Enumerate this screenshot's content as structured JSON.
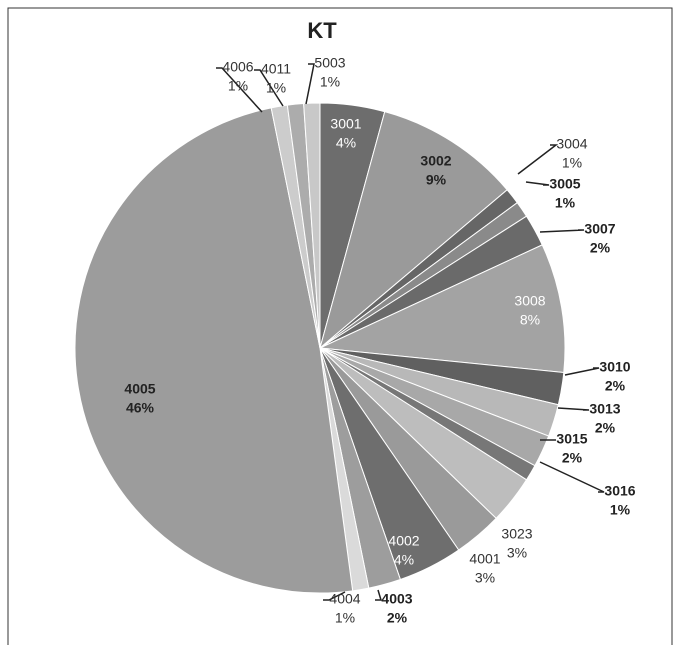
{
  "chart_data": {
    "type": "pie",
    "title": "KT",
    "categories": [
      "3001",
      "3002",
      "3004",
      "3005",
      "3007",
      "3008",
      "3010",
      "3013",
      "3015",
      "3016",
      "3023",
      "4001",
      "4002",
      "4003",
      "4004",
      "4005",
      "4006",
      "4011",
      "5003"
    ],
    "values": [
      4,
      9,
      1,
      1,
      2,
      8,
      2,
      2,
      2,
      1,
      3,
      3,
      4,
      2,
      1,
      46,
      1,
      1,
      1
    ],
    "value_labels": [
      "4%",
      "9%",
      "1%",
      "1%",
      "2%",
      "8%",
      "2%",
      "2%",
      "2%",
      "1%",
      "3%",
      "3%",
      "4%",
      "2%",
      "1%",
      "46%",
      "1%",
      "1%",
      "1%"
    ],
    "colors": [
      "#6d6d6d",
      "#9a9a9a",
      "#666666",
      "#8a8a8a",
      "#6a6a6a",
      "#a3a3a3",
      "#606060",
      "#b8b8b8",
      "#a8a8a8",
      "#777777",
      "#bdbdbd",
      "#9a9a9a",
      "#6e6e6e",
      "#9d9d9d",
      "#dadada",
      "#9c9c9c",
      "#cccccc",
      "#acacac",
      "#c8c8c8"
    ]
  }
}
